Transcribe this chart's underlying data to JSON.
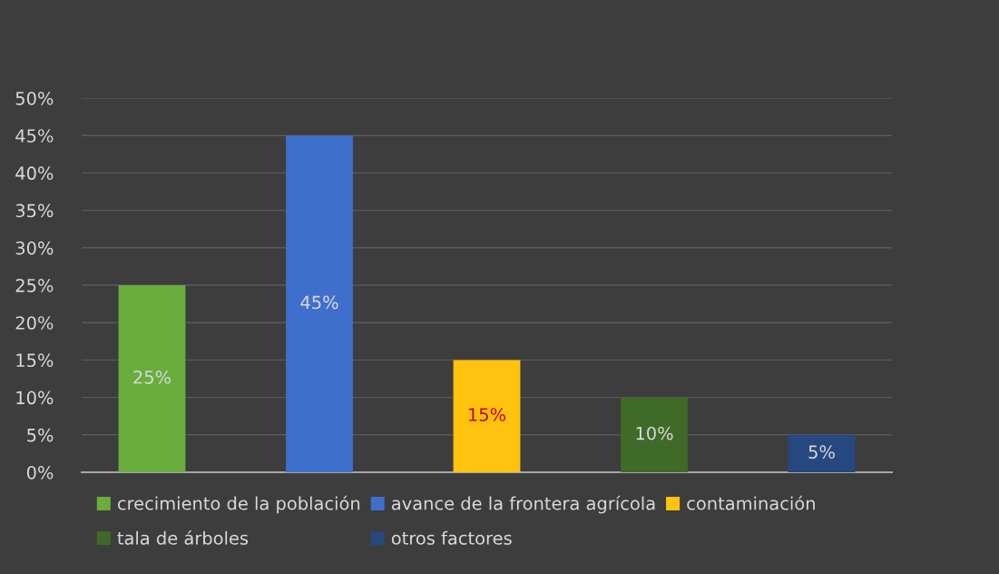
{
  "chart_data": {
    "type": "bar",
    "categories": [
      null,
      null,
      null,
      null,
      null
    ],
    "series": [
      {
        "name": "crecimiento de la población",
        "color": "#6aad3d",
        "values": [
          25,
          null,
          null,
          null,
          null
        ],
        "value_labels": [
          "25%",
          null,
          null,
          null,
          null
        ]
      },
      {
        "name": "avance de la frontera agrícola",
        "color": "#3f6fcc",
        "values": [
          null,
          45,
          null,
          null,
          null
        ],
        "value_labels": [
          null,
          "45%",
          null,
          null,
          null
        ]
      },
      {
        "name": "contaminación",
        "color": "#ffc20e",
        "values": [
          null,
          null,
          15,
          null,
          null
        ],
        "value_labels": [
          null,
          null,
          "15%",
          null,
          null
        ]
      },
      {
        "name": "tala de árboles",
        "color": "#3f6a28",
        "values": [
          null,
          null,
          null,
          10,
          null
        ],
        "value_labels": [
          null,
          null,
          null,
          "10%",
          null
        ]
      },
      {
        "name": "otros factores",
        "color": "#27487f",
        "values": [
          null,
          null,
          null,
          null,
          5
        ],
        "value_labels": [
          null,
          null,
          null,
          null,
          "5%"
        ]
      }
    ],
    "ylim": [
      0,
      50
    ],
    "yticks": [
      {
        "value": 0,
        "label": "0%"
      },
      {
        "value": 5,
        "label": "5%"
      },
      {
        "value": 10,
        "label": "10%"
      },
      {
        "value": 15,
        "label": "15%"
      },
      {
        "value": 20,
        "label": "20%"
      },
      {
        "value": 25,
        "label": "25%"
      },
      {
        "value": 30,
        "label": "30%"
      },
      {
        "value": 35,
        "label": "35%"
      },
      {
        "value": 40,
        "label": "40%"
      },
      {
        "value": 45,
        "label": "45%"
      },
      {
        "value": 50,
        "label": "50%"
      }
    ],
    "grid": "y",
    "legend": "bottom"
  }
}
